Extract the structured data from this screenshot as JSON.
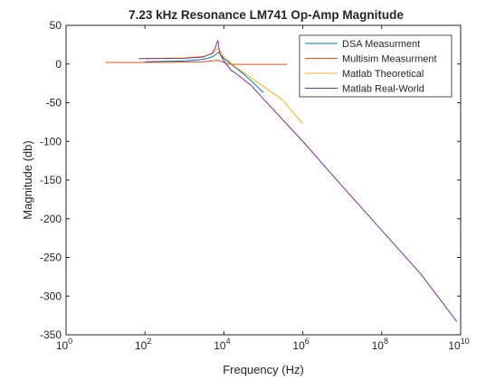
{
  "chart_data": {
    "type": "line",
    "title": "7.23 kHz Resonance LM741 Op-Amp Magnitude",
    "xlabel": "Frequency (Hz)",
    "ylabel": "Magnitude (db)",
    "xscale": "log",
    "xlim": [
      1,
      10000000000
    ],
    "ylim": [
      -350,
      50
    ],
    "xticks": [
      {
        "value": 1,
        "base": "10",
        "exp": "0"
      },
      {
        "value": 100,
        "base": "10",
        "exp": "2"
      },
      {
        "value": 10000,
        "base": "10",
        "exp": "4"
      },
      {
        "value": 1000000,
        "base": "10",
        "exp": "6"
      },
      {
        "value": 100000000,
        "base": "10",
        "exp": "8"
      },
      {
        "value": 10000000000,
        "base": "10",
        "exp": "10"
      }
    ],
    "yticks": [
      50,
      0,
      -50,
      -100,
      -150,
      -200,
      -250,
      -300,
      -350
    ],
    "grid": false,
    "legend_position": "top-right",
    "series": [
      {
        "name": "DSA Measurment",
        "color": "#0072bd",
        "x": [
          100,
          1000,
          3000,
          5000,
          6500,
          7230,
          8000,
          10000,
          15000,
          20000,
          30000,
          50000,
          100000
        ],
        "y": [
          3,
          4,
          6,
          9,
          13,
          15,
          13,
          7,
          0,
          -5,
          -12,
          -22,
          -37
        ]
      },
      {
        "name": "Multisim Measurment",
        "color": "#d95319",
        "x": [
          10,
          100,
          1000,
          3000,
          5000,
          7000,
          9000,
          12000,
          20000,
          50000,
          100000,
          400000
        ],
        "y": [
          2,
          2,
          2.5,
          3,
          4,
          5,
          3,
          0,
          -0.5,
          -0.5,
          -0.5,
          -0.5
        ]
      },
      {
        "name": "Matlab Theoretical",
        "color": "#edb120",
        "x": [
          100,
          1000,
          3000,
          5000,
          6500,
          7230,
          8000,
          10000,
          20000,
          50000,
          100000,
          300000,
          1000000
        ],
        "y": [
          7,
          8,
          10,
          13,
          18,
          20,
          17,
          9,
          -4,
          -18,
          -29,
          -46,
          -77
        ]
      },
      {
        "name": "Matlab Real-World",
        "color": "#7e2f8e",
        "x": [
          70,
          1000,
          3000,
          5000,
          6000,
          6500,
          7000,
          7230,
          7500,
          8000,
          9000,
          10000,
          15000,
          20000,
          50000,
          100000,
          1000000,
          10000000,
          100000000,
          1000000000,
          8000000000
        ],
        "y": [
          7,
          7.5,
          9,
          14,
          20,
          26,
          30,
          27,
          20,
          13,
          8,
          4,
          -8,
          -12,
          -28,
          -45,
          -100,
          -158,
          -215,
          -272,
          -333
        ]
      }
    ]
  }
}
